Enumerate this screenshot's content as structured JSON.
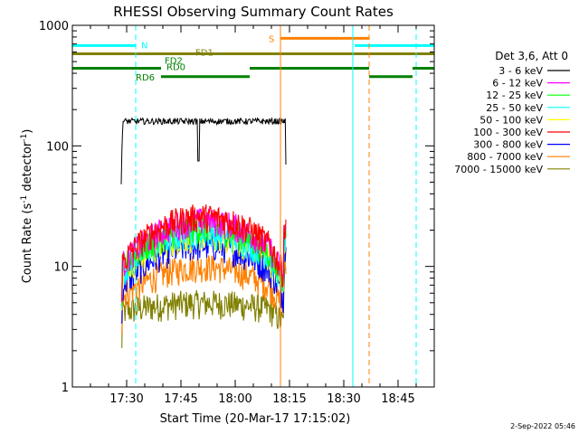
{
  "chart_data": {
    "type": "line",
    "title": "RHESSI Observing Summary Count Rates",
    "xlabel": "Start Time (20-Mar-17 17:15:02)",
    "ylabel": "Count Rate (s",
    "ylabel_sup1": "-1",
    "ylabel_mid": " detector",
    "ylabel_sup2": "-1",
    "ylabel_end": ")",
    "y_scale": "log",
    "ylim": [
      1,
      1000
    ],
    "xlim_minutes": [
      0,
      100
    ],
    "x_ticks": [
      {
        "minute": 15,
        "label": "17:30"
      },
      {
        "minute": 30,
        "label": "17:45"
      },
      {
        "minute": 45,
        "label": "18:00"
      },
      {
        "minute": 60,
        "label": "18:15"
      },
      {
        "minute": 75,
        "label": "18:30"
      },
      {
        "minute": 90,
        "label": "18:45"
      }
    ],
    "y_ticks": [
      {
        "value": 1,
        "label": "1"
      },
      {
        "value": 10,
        "label": "10"
      },
      {
        "value": 100,
        "label": "100"
      },
      {
        "value": 1000,
        "label": "1000"
      }
    ],
    "legend_header": "Det 3,6, Att 0",
    "legend_position": "right",
    "series": [
      {
        "name": "3 - 6 keV",
        "color": "#000000",
        "level": 160,
        "dip": 0
      },
      {
        "name": "6 - 12 keV",
        "color": "#ff00ff",
        "level": 24,
        "dip": 0.58
      },
      {
        "name": "12 - 25 keV",
        "color": "#00ff00",
        "level": 21,
        "dip": 0.55
      },
      {
        "name": "25 - 50 keV",
        "color": "#00ffff",
        "level": 19,
        "dip": 0.53
      },
      {
        "name": "50 - 100 keV",
        "color": "#ffff00",
        "level": 18,
        "dip": 0.52
      },
      {
        "name": "100 - 300 keV",
        "color": "#ff0000",
        "level": 26,
        "dip": 0.6
      },
      {
        "name": "300 - 800 keV",
        "color": "#0000ff",
        "level": 15,
        "dip": 0.55
      },
      {
        "name": "800 - 7000 keV",
        "color": "#ff8000",
        "level": 10,
        "dip": 0.45
      },
      {
        "name": "7000 - 15000 keV",
        "color": "#808000",
        "level": 5,
        "dip": 0.15
      }
    ],
    "data_window_minutes": [
      13.5,
      59
    ],
    "flags": {
      "night_marks": [
        {
          "label": "N",
          "color": "#00ffff",
          "start": 0,
          "end": 17.5,
          "value": 680
        },
        {
          "label": "",
          "color": "#00ffff",
          "start": 78,
          "end": 100,
          "value": 680
        }
      ],
      "saa_marks": [
        {
          "label": "S",
          "color": "#ff8000",
          "start": 57.5,
          "end": 82,
          "value": 780
        }
      ],
      "fd1": {
        "label": "FD1",
        "color": "#808000",
        "start": 0,
        "end": 100,
        "value": 580
      },
      "fd2": {
        "label": "FD2",
        "color": "#008000",
        "start": 0,
        "end": 100,
        "value": 495
      },
      "rd0": {
        "label": "RD0",
        "color": "#008000",
        "segments": [
          [
            0,
            24.5
          ],
          [
            49,
            82
          ],
          [
            94,
            100
          ]
        ],
        "value": 440
      },
      "rd6": {
        "label": "RD6",
        "color": "#008000",
        "segments": [
          [
            24.5,
            49
          ],
          [
            82,
            94
          ]
        ],
        "value": 375
      }
    },
    "vertical_lines": [
      {
        "minute": 0,
        "color": "#00ffff",
        "dash": false
      },
      {
        "minute": 17.5,
        "color": "#00ffff",
        "dash": true
      },
      {
        "minute": 57.5,
        "color": "#ff8000",
        "dash": false
      },
      {
        "minute": 77.5,
        "color": "#00ffff",
        "dash": false
      },
      {
        "minute": 82,
        "color": "#ff8000",
        "dash": true
      },
      {
        "minute": 95,
        "color": "#00ffff",
        "dash": true
      }
    ],
    "grid": false
  },
  "footer": {
    "timestamp": "2-Sep-2022 05:46"
  }
}
